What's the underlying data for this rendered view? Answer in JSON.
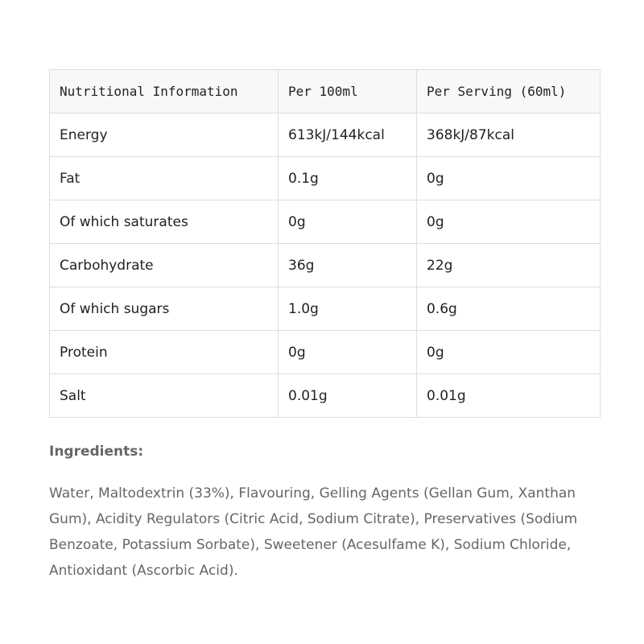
{
  "table": {
    "header": [
      "Nutritional Information",
      "Per 100ml",
      "Per Serving (60ml)"
    ],
    "rows": [
      [
        "Energy",
        "613kJ/144kcal",
        "368kJ/87kcal"
      ],
      [
        "Fat",
        "0.1g",
        "0g"
      ],
      [
        "Of which saturates",
        "0g",
        "0g"
      ],
      [
        "Carbohydrate",
        "36g",
        "22g"
      ],
      [
        "Of which sugars",
        "1.0g",
        "0.6g"
      ],
      [
        "Protein",
        "0g",
        "0g"
      ],
      [
        "Salt",
        "0.01g",
        "0.01g"
      ]
    ]
  },
  "ingredients": {
    "title": "Ingredients:",
    "text": "Water, Maltodextrin (33%), Flavouring, Gelling Agents (Gellan Gum, Xanthan Gum), Acidity Regulators (Citric Acid, Sodium Citrate), Preservatives (Sodium Benzoate, Potassium Sorbate), Sweetener (Acesulfame K), Sodium Chloride, Antioxidant (Ascorbic Acid)."
  }
}
